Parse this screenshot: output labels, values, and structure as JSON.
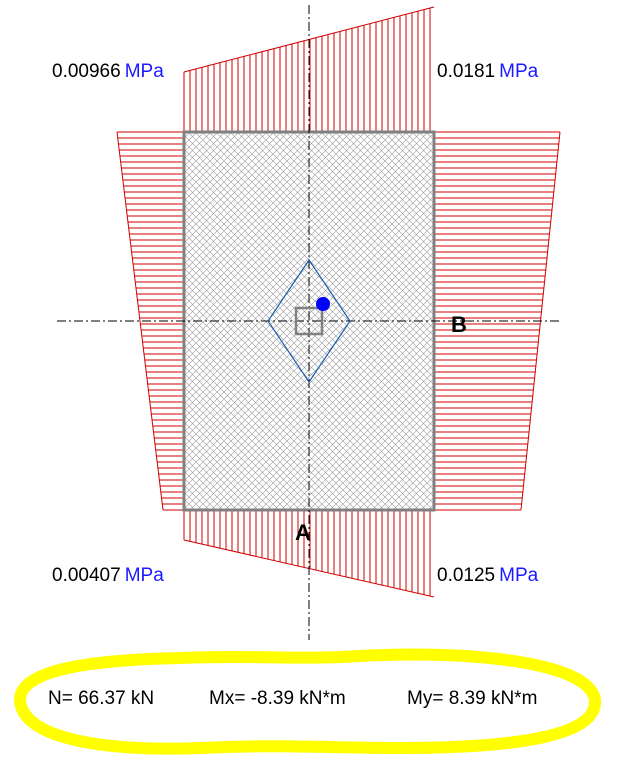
{
  "stresses": {
    "top_left": {
      "value": "0.00966",
      "unit": "MPa"
    },
    "top_right": {
      "value": "0.0181",
      "unit": "MPa"
    },
    "bottom_left": {
      "value": "0.00407",
      "unit": "MPa"
    },
    "bottom_right": {
      "value": "0.0125",
      "unit": "MPa"
    }
  },
  "axes": {
    "a": "A",
    "b": "B"
  },
  "forces": {
    "n": "N= 66.37 kN",
    "mx": "Mx= -8.39 kN*m",
    "my": "My= 8.39 kN*m"
  },
  "colors": {
    "stress_fill": "#d00000",
    "section_outline": "#808080",
    "core_outline": "#1c5fae",
    "load_point": "#0000ff",
    "unit_text": "#1a1aff",
    "highlight": "#ffff00"
  }
}
